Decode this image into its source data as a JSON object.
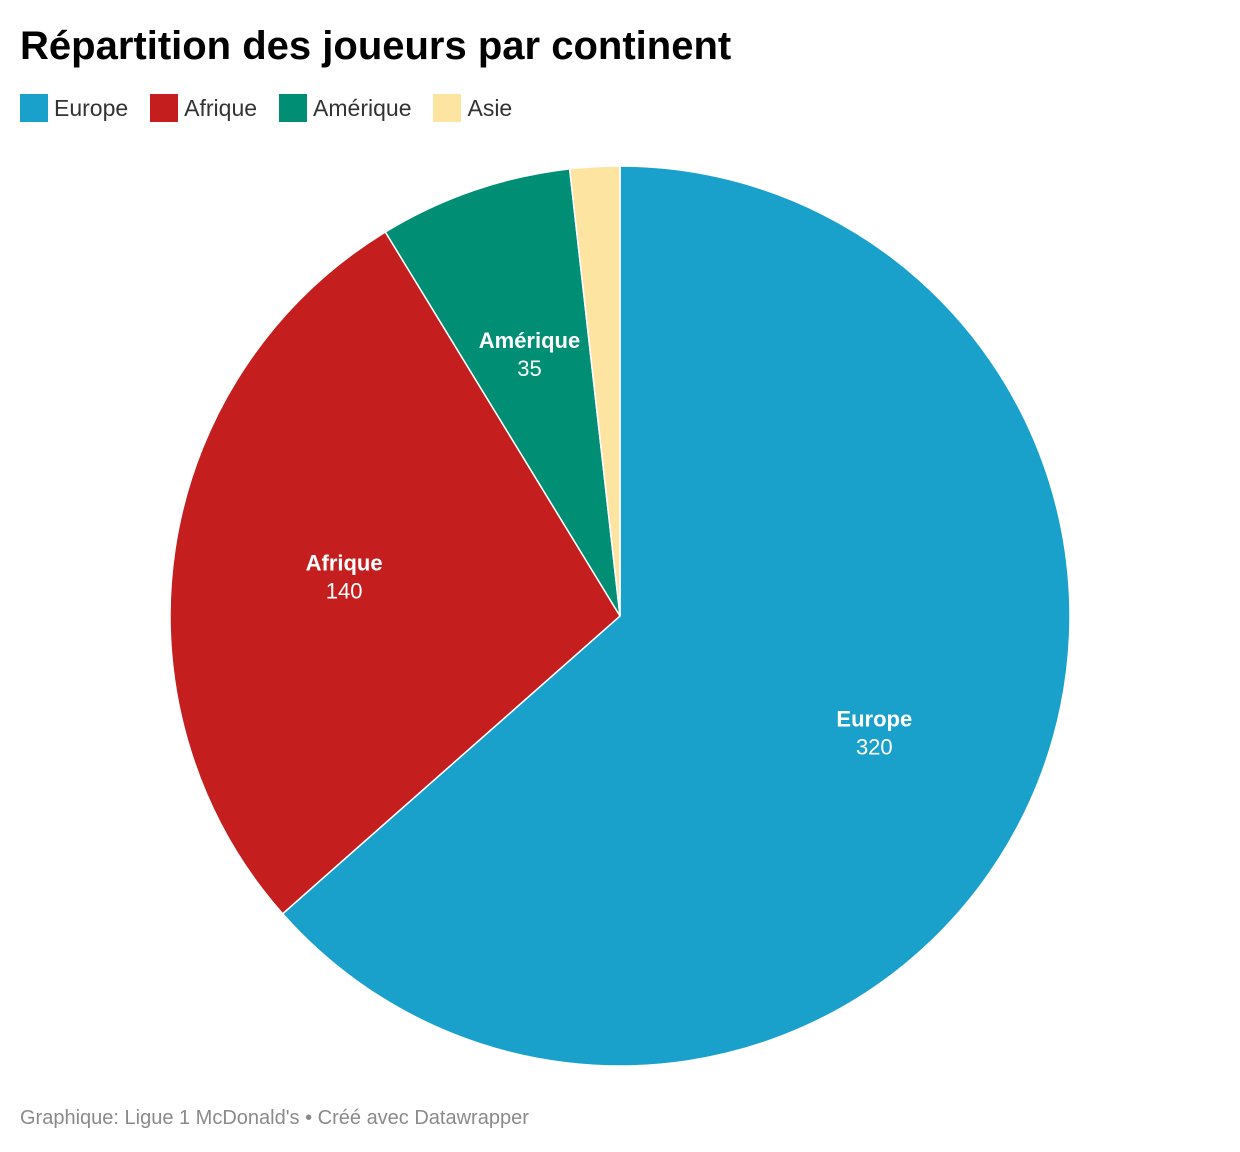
{
  "chart_data": {
    "type": "pie",
    "title": "Répartition des joueurs par continent",
    "legend_position": "top-left",
    "slices": [
      {
        "label": "Europe",
        "value": 320,
        "value_text": "320",
        "color": "#1aa1cb"
      },
      {
        "label": "Afrique",
        "value": 140,
        "value_text": "140",
        "color": "#c41e1e"
      },
      {
        "label": "Amérique",
        "value": 35,
        "value_text": "35",
        "color": "#008e74"
      },
      {
        "label": "Asie",
        "value": 9,
        "value_text": "",
        "color": "#fde4a1"
      }
    ]
  },
  "legend": {
    "items": [
      {
        "label": "Europe",
        "color": "#1aa1cb"
      },
      {
        "label": "Afrique",
        "color": "#c41e1e"
      },
      {
        "label": "Amérique",
        "color": "#008e74"
      },
      {
        "label": "Asie",
        "color": "#fde4a1"
      }
    ]
  },
  "footer": {
    "text": "Graphique: Ligue 1 McDonald's • Créé avec Datawrapper"
  }
}
